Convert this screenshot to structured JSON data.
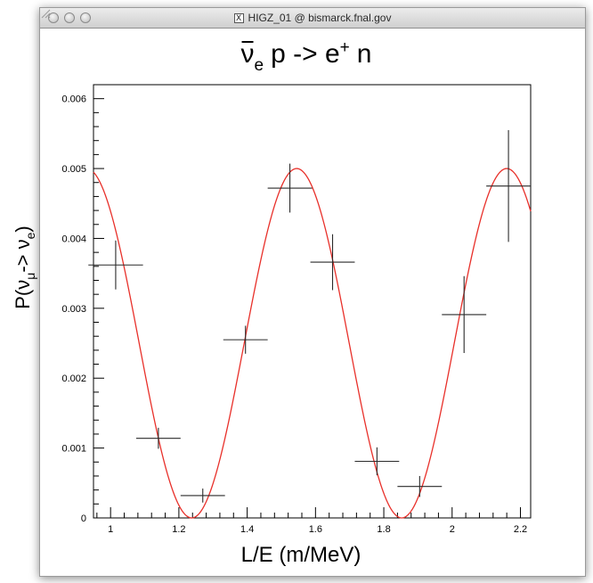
{
  "window": {
    "title": "HIGZ_01 @ bismarck.fnal.gov",
    "close_icon": "x11-icon"
  },
  "chart_data": {
    "type": "scatter",
    "title_parts": {
      "nu": "ν",
      "nu_sub": "e",
      "rest": "p -> e",
      "sup": "+",
      "end": "n"
    },
    "xlabel": "L/E (m/MeV)",
    "ylabel_parts": {
      "p": "P(ν",
      "mu": "μ",
      "arrow": "-> ν",
      "e": "e",
      "close": ")"
    },
    "xlim": [
      0.95,
      2.23
    ],
    "ylim": [
      0,
      0.0062
    ],
    "x_ticks": [
      {
        "v": 1,
        "label": "1"
      },
      {
        "v": 1.2,
        "label": "1.2"
      },
      {
        "v": 1.4,
        "label": "1.4"
      },
      {
        "v": 1.6,
        "label": "1.6"
      },
      {
        "v": 1.8,
        "label": "1.8"
      },
      {
        "v": 2,
        "label": "2"
      },
      {
        "v": 2.2,
        "label": "2.2"
      }
    ],
    "y_ticks": [
      {
        "v": 0,
        "label": "0"
      },
      {
        "v": 0.001,
        "label": "0.001"
      },
      {
        "v": 0.002,
        "label": "0.002"
      },
      {
        "v": 0.003,
        "label": "0.003"
      },
      {
        "v": 0.004,
        "label": "0.004"
      },
      {
        "v": 0.005,
        "label": "0.005"
      },
      {
        "v": 0.006,
        "label": "0.006"
      }
    ],
    "points": [
      {
        "x": 1.015,
        "y": 0.00362,
        "xerr": 0.08,
        "yerr": 0.00035
      },
      {
        "x": 1.14,
        "y": 0.00114,
        "xerr": 0.065,
        "yerr": 0.00015
      },
      {
        "x": 1.27,
        "y": 0.00032,
        "xerr": 0.065,
        "yerr": 0.0001
      },
      {
        "x": 1.395,
        "y": 0.00255,
        "xerr": 0.065,
        "yerr": 0.0002
      },
      {
        "x": 1.525,
        "y": 0.00472,
        "xerr": 0.065,
        "yerr": 0.00035
      },
      {
        "x": 1.65,
        "y": 0.00366,
        "xerr": 0.065,
        "yerr": 0.0004
      },
      {
        "x": 1.78,
        "y": 0.00081,
        "xerr": 0.065,
        "yerr": 0.0002
      },
      {
        "x": 1.905,
        "y": 0.00045,
        "xerr": 0.065,
        "yerr": 0.00015
      },
      {
        "x": 2.035,
        "y": 0.00291,
        "xerr": 0.065,
        "yerr": 0.00055
      },
      {
        "x": 2.165,
        "y": 0.00475,
        "xerr": 0.065,
        "yerr": 0.0008
      }
    ],
    "curve": {
      "color": "#e8302a",
      "form": "0.0025*(1+cos(2*pi*(x-1.545)/0.615))"
    },
    "colors": {
      "points": "#2a2a2a",
      "axes": "#000000"
    },
    "grid": false
  }
}
